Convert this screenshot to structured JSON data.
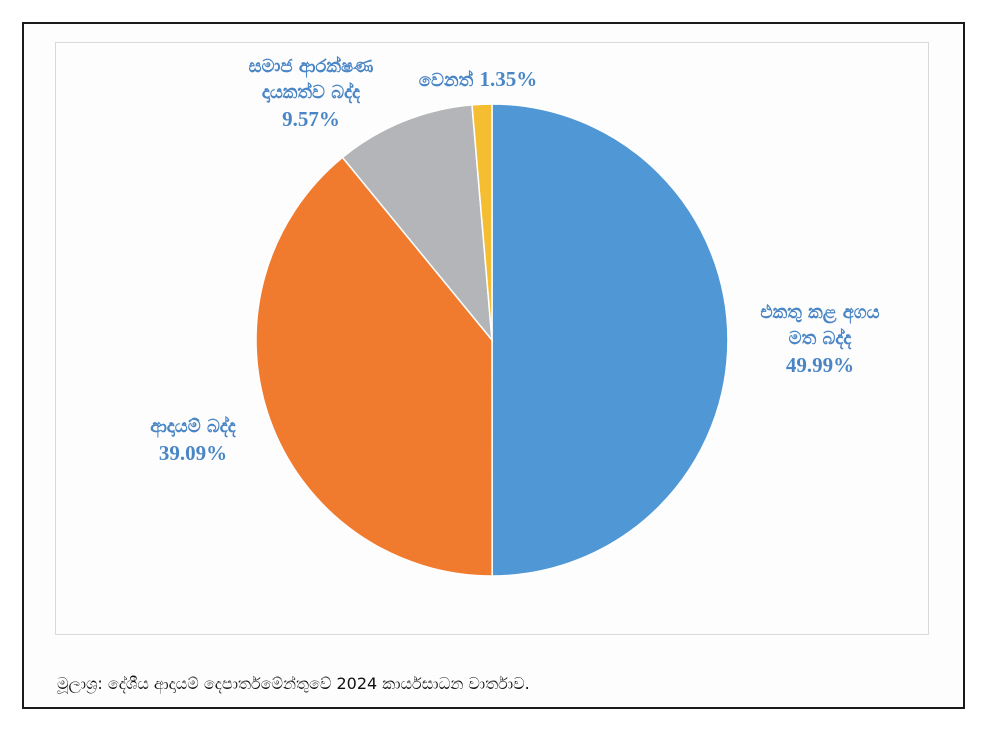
{
  "chart_data": {
    "type": "pie",
    "start_angle_deg": 0,
    "direction": "clockwise",
    "slices": [
      {
        "label_lines": [
          "එකතු කළ අගය",
          "මත බද්ද"
        ],
        "value": 49.99,
        "value_text": "49.99%",
        "color": "#5097d5"
      },
      {
        "label_lines": [
          "ආදායම් බද්ද"
        ],
        "value": 39.09,
        "value_text": "39.09%",
        "color": "#f07b2e"
      },
      {
        "label_lines": [
          "සමාජ ආරක්ෂණ",
          "දායකත්ව බද්ද"
        ],
        "value": 9.57,
        "value_text": "9.57%",
        "color": "#b3b5b8"
      },
      {
        "label_lines": [
          "වෙනත්"
        ],
        "value": 1.35,
        "value_text": "1.35%",
        "color": "#f5bd32"
      }
    ]
  },
  "source": "මූලාශ්‍ර: දේශීය ආදායම් දෙපාර්තමේන්තුවේ 2024 කාර්යසාධන වාර්තාව."
}
